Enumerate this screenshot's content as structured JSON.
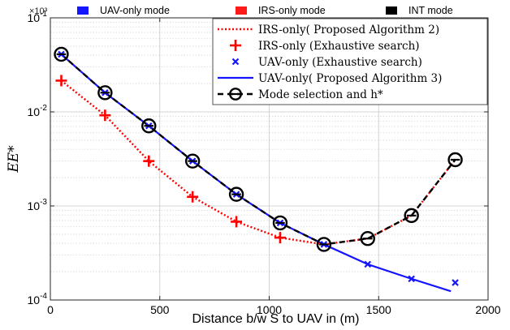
{
  "chart_data": {
    "type": "line",
    "xlabel": "Distance  b/w  S to UAV in (m)",
    "ylabel": "EE*",
    "yscale": "log",
    "exponent_note": "×10³",
    "xlim": [
      0,
      2000
    ],
    "ylim": [
      0.0001,
      0.1
    ],
    "grid": true,
    "x_ticks": [
      0,
      500,
      1000,
      1500,
      2000
    ],
    "x_tick_labels": [
      "0",
      "500",
      "1000",
      "1500",
      "2000"
    ],
    "y_ticks": [
      0.1,
      0.01,
      0.001,
      0.0001
    ],
    "y_tick_labels": [
      {
        "base": "10",
        "exp": "-1"
      },
      {
        "base": "10",
        "exp": "-2"
      },
      {
        "base": "10",
        "exp": "-3"
      },
      {
        "base": "10",
        "exp": "-4"
      }
    ],
    "top_legend": [
      {
        "label": "UAV-only mode",
        "color": "#1515ff"
      },
      {
        "label": "IRS-only mode",
        "color": "#ff1a1a"
      },
      {
        "label": "INT mode",
        "color": "#000000"
      }
    ],
    "legend_position": "top-right",
    "series": [
      {
        "name": "IRS-only( Proposed Algorithm 2)",
        "style": "dotted-line",
        "color": "#ff0000",
        "x": [
          50,
          250,
          450,
          650,
          850,
          1050,
          1250,
          1450,
          1650,
          1850
        ],
        "y": [
          0.0215,
          0.0092,
          0.003,
          0.00125,
          0.00068,
          0.00046,
          0.00039,
          0.00045,
          0.00079,
          0.0031
        ]
      },
      {
        "name": "IRS-only (Exhaustive search)",
        "style": "plus-markers",
        "color": "#ff0000",
        "x": [
          50,
          250,
          450,
          650,
          850,
          1050
        ],
        "y": [
          0.0215,
          0.0092,
          0.003,
          0.00125,
          0.00068,
          0.00046
        ]
      },
      {
        "name": "UAV-only (Exhaustive search)",
        "style": "x-markers",
        "color": "#1515ff",
        "x": [
          50,
          250,
          450,
          650,
          850,
          1050,
          1250,
          1450,
          1650,
          1850
        ],
        "y": [
          0.041,
          0.016,
          0.0071,
          0.003,
          0.00133,
          0.00066,
          0.00039,
          0.00024,
          0.000168,
          0.000153
        ]
      },
      {
        "name": "UAV-only( Proposed Algorithm 3)",
        "style": "solid-line",
        "color": "#1515ff",
        "x": [
          50,
          250,
          450,
          650,
          850,
          1050,
          1250,
          1450,
          1650,
          1830
        ],
        "y": [
          0.041,
          0.016,
          0.0071,
          0.003,
          0.00133,
          0.00066,
          0.00039,
          0.00024,
          0.000168,
          0.000124
        ]
      },
      {
        "name": "Mode selection and h*",
        "style": "dashed-circle-markers",
        "color": "#000000",
        "x": [
          50,
          250,
          450,
          650,
          850,
          1050,
          1250,
          1450,
          1650,
          1850
        ],
        "y": [
          0.041,
          0.016,
          0.0071,
          0.003,
          0.00133,
          0.00066,
          0.00039,
          0.00045,
          0.00079,
          0.0031
        ]
      }
    ]
  }
}
